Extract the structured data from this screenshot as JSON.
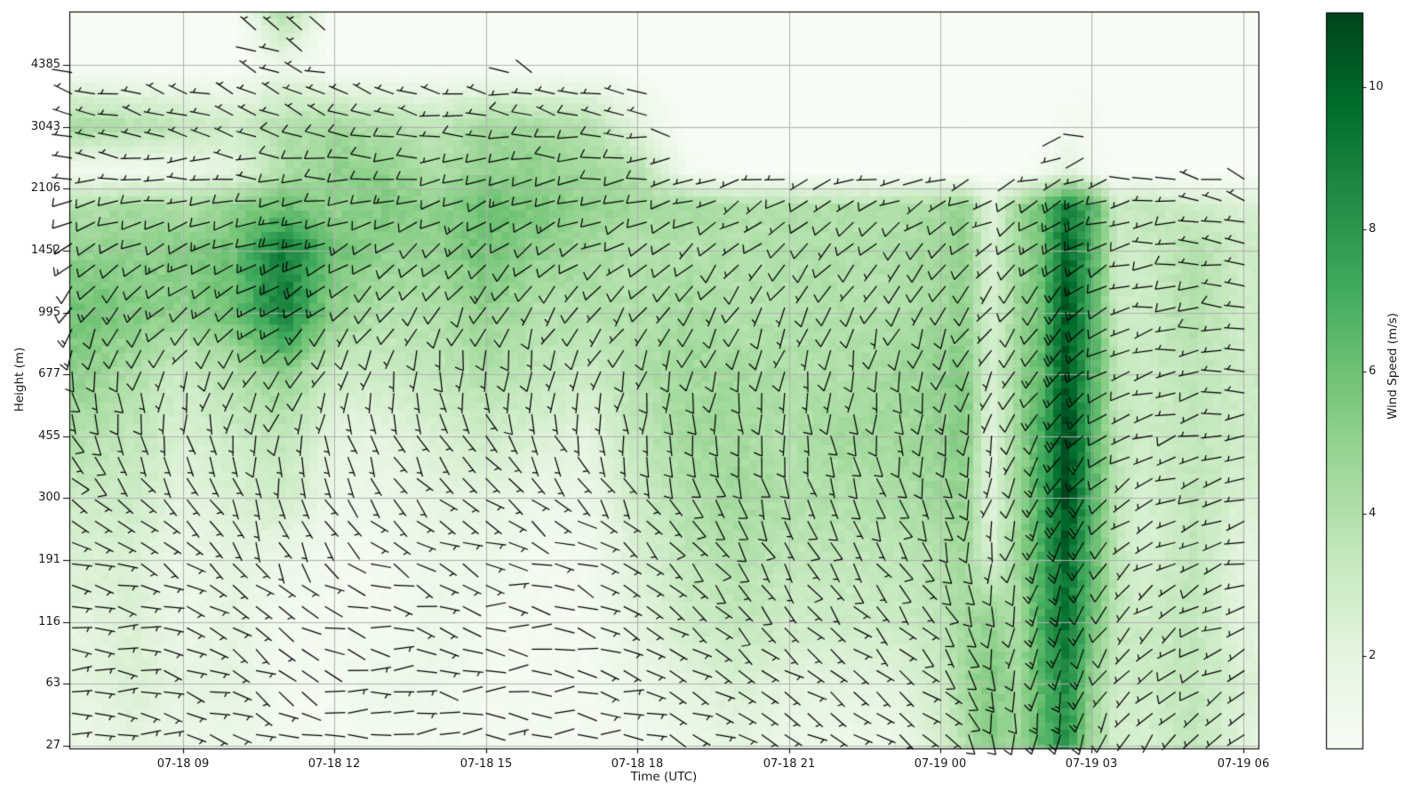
{
  "axes": {
    "xlabel": "Time (UTC)",
    "ylabel": "Height (m)",
    "x_ticks": [
      {
        "hour": 9,
        "label": "07-18 09"
      },
      {
        "hour": 12,
        "label": "07-18 12"
      },
      {
        "hour": 15,
        "label": "07-18 15"
      },
      {
        "hour": 18,
        "label": "07-18 18"
      },
      {
        "hour": 21,
        "label": "07-18 21"
      },
      {
        "hour": 24,
        "label": "07-19 00"
      },
      {
        "hour": 27,
        "label": "07-19 03"
      },
      {
        "hour": 30,
        "label": "07-19 06"
      }
    ],
    "y_ticks": [
      {
        "height_m": 27,
        "label": "27"
      },
      {
        "height_m": 63,
        "label": "63"
      },
      {
        "height_m": 116,
        "label": "116"
      },
      {
        "height_m": 191,
        "label": "191"
      },
      {
        "height_m": 300,
        "label": "300"
      },
      {
        "height_m": 455,
        "label": "455"
      },
      {
        "height_m": 677,
        "label": "677"
      },
      {
        "height_m": 995,
        "label": "995"
      },
      {
        "height_m": 1452,
        "label": "1452"
      },
      {
        "height_m": 2106,
        "label": "2106"
      },
      {
        "height_m": 3043,
        "label": "3043"
      },
      {
        "height_m": 4385,
        "label": "4385"
      }
    ],
    "grid_color": "#b0b0b0",
    "spine_color": "#000000",
    "barb_color": "#000000"
  },
  "colorbar": {
    "label": "Wind Speed (m/s)",
    "ticks": [
      2,
      4,
      6,
      8,
      10
    ],
    "vmin": 0.7,
    "vmax": 11.05,
    "colormap_name": "Greens",
    "colormap_stops": [
      "#f7fcf5",
      "#e5f5e0",
      "#c7e9c0",
      "#a1d99b",
      "#74c476",
      "#41ab5d",
      "#238b45",
      "#006d2c",
      "#00441b"
    ]
  },
  "chart_data": {
    "type": "heatmap",
    "title": "",
    "xlabel": "Time (UTC)",
    "ylabel": "Height (m)",
    "x_note": "hours since 2024-07-18 00:00 UTC; plot spans 6.75 to 30.3",
    "x_start_hour": 6.75,
    "x_end_hour": 30.3,
    "x_hours": [
      7,
      8,
      9,
      10,
      11,
      12,
      13,
      14,
      15,
      16,
      17,
      18,
      19,
      20,
      21,
      22,
      23,
      24,
      24.5,
      25,
      25.5,
      26,
      26.5,
      27,
      27.5,
      28,
      29,
      30
    ],
    "y_level_index": [
      0,
      1,
      2,
      3,
      4,
      5,
      6,
      7,
      8,
      8.7,
      9.3,
      10,
      11,
      11.9
    ],
    "y_level_heights_m": [
      27,
      63,
      116,
      191,
      300,
      455,
      677,
      995,
      1452,
      1800,
      2300,
      3043,
      4385,
      5600
    ],
    "wind_speed_ms": [
      [
        1.5,
        2,
        1.5,
        1.5,
        1,
        1,
        1,
        1,
        1,
        1,
        1,
        1,
        1.5,
        2,
        1.5,
        1.5,
        1.5,
        2.5,
        4,
        5.5,
        4.5,
        6.5,
        8,
        4.5,
        2.5,
        2.5,
        3.5,
        2
      ],
      [
        2,
        2.5,
        2,
        2,
        1,
        1,
        1.5,
        1.5,
        1,
        1,
        1,
        1.5,
        2,
        2.5,
        2,
        2,
        2,
        3,
        4.5,
        5.5,
        4.5,
        6.5,
        8.5,
        5,
        3,
        3,
        3.5,
        2.5
      ],
      [
        2,
        2.5,
        1.5,
        2,
        1,
        1,
        1,
        1.5,
        1,
        1,
        1,
        2,
        3,
        3.5,
        3,
        3,
        3,
        3.5,
        4.5,
        5,
        4,
        7,
        9.5,
        6,
        3.5,
        3,
        3.5,
        2
      ],
      [
        2.5,
        2.5,
        1.5,
        2,
        1.5,
        1,
        1,
        1.5,
        1.5,
        1,
        1,
        2.5,
        3.5,
        4,
        3.5,
        3.5,
        3.5,
        4,
        4.5,
        2.5,
        4.5,
        7,
        10,
        6.5,
        3.5,
        2.5,
        3.5,
        2
      ],
      [
        3,
        3,
        2,
        2.5,
        3,
        1.5,
        1.5,
        2,
        2,
        1.5,
        1.5,
        3,
        4,
        4.5,
        4,
        4,
        4,
        4.5,
        5,
        2,
        4.5,
        7,
        11,
        7,
        3.5,
        2.5,
        3.5,
        2.5
      ],
      [
        4,
        3.5,
        2.5,
        3,
        3.5,
        2,
        2,
        2.5,
        3,
        2.5,
        2,
        3.5,
        4.5,
        4.5,
        4,
        4.5,
        4.5,
        5,
        5.5,
        2,
        4.5,
        7,
        11,
        7,
        3.5,
        3,
        3.5,
        3
      ],
      [
        5,
        4,
        3,
        4,
        5,
        3,
        3,
        3.5,
        4,
        3.5,
        3,
        4,
        4.5,
        4.5,
        4,
        4,
        4.5,
        5,
        5.5,
        2.5,
        4.5,
        6.5,
        10.5,
        7,
        3.5,
        3,
        3.5,
        3
      ],
      [
        6,
        5.5,
        5,
        6,
        9,
        5,
        4,
        4,
        5,
        4,
        4,
        4,
        4.5,
        4,
        4,
        4,
        4,
        4.5,
        5,
        2.5,
        4.5,
        6,
        10.5,
        7,
        3,
        3,
        4,
        3
      ],
      [
        5,
        5,
        5.5,
        6,
        9,
        6,
        5,
        5,
        6,
        5,
        4.5,
        4,
        4,
        4,
        4,
        4,
        4,
        4.5,
        5,
        2.5,
        4.5,
        6,
        10,
        7,
        3,
        3,
        4,
        3
      ],
      [
        4,
        4.5,
        4,
        5,
        6,
        5,
        5.5,
        5,
        6,
        5.5,
        5,
        4.5,
        4.5,
        4,
        4,
        4,
        4,
        4.5,
        5,
        2,
        4.5,
        6,
        9,
        7,
        3,
        3.5,
        3,
        2.5
      ],
      [
        1,
        1,
        1.5,
        2,
        4,
        5,
        5,
        4,
        5,
        5,
        4.5,
        4,
        1,
        0.5,
        0.5,
        0.5,
        0.5,
        0.5,
        0.5,
        0.5,
        0.5,
        1,
        2,
        1,
        0.5,
        0.5,
        0.5,
        0.5
      ],
      [
        4.5,
        4,
        3.5,
        3,
        4,
        4.5,
        4,
        3.5,
        4.5,
        4.5,
        4,
        2,
        0.5,
        0.5,
        0.5,
        0.5,
        0.5,
        0.5,
        0.5,
        0.5,
        0.5,
        0.5,
        1,
        1,
        0.5,
        0.5,
        0.5,
        0.5
      ],
      [
        0.5,
        0.5,
        0.5,
        0.5,
        1.5,
        0.5,
        0.5,
        0.5,
        0.5,
        0.5,
        0.5,
        0.5,
        0.5,
        0.5,
        0.5,
        0.5,
        0.5,
        0.5,
        0.5,
        0.5,
        0.5,
        0.5,
        0.5,
        0.5,
        0.5,
        0.5,
        0.5,
        0.5
      ],
      [
        0.5,
        0.5,
        0.5,
        0.5,
        4.5,
        0.5,
        0.5,
        0.5,
        0.5,
        0.5,
        0.5,
        0.5,
        0.5,
        0.5,
        0.5,
        0.5,
        0.5,
        0.5,
        0.5,
        0.5,
        0.5,
        0.5,
        0.5,
        0.5,
        0.5,
        0.5,
        0.5,
        0.5
      ]
    ],
    "wind_dir_deg_from": [
      [
        80,
        90,
        100,
        110,
        120,
        100,
        90,
        90,
        90,
        90,
        90,
        100,
        110,
        120,
        120,
        120,
        120,
        130,
        150,
        170,
        180,
        185,
        190,
        200,
        210,
        220,
        230,
        240
      ],
      [
        85,
        95,
        105,
        115,
        120,
        100,
        95,
        95,
        90,
        90,
        95,
        105,
        115,
        125,
        125,
        125,
        125,
        135,
        155,
        175,
        185,
        190,
        195,
        205,
        215,
        225,
        235,
        245
      ],
      [
        90,
        100,
        110,
        120,
        130,
        110,
        100,
        100,
        95,
        95,
        100,
        115,
        125,
        135,
        135,
        135,
        135,
        145,
        160,
        180,
        190,
        195,
        200,
        210,
        220,
        230,
        240,
        250
      ],
      [
        110,
        120,
        130,
        140,
        150,
        130,
        120,
        115,
        110,
        110,
        115,
        130,
        140,
        145,
        145,
        145,
        145,
        155,
        170,
        185,
        195,
        200,
        205,
        215,
        225,
        235,
        245,
        255
      ],
      [
        130,
        140,
        150,
        160,
        170,
        150,
        140,
        135,
        130,
        130,
        140,
        150,
        155,
        160,
        160,
        160,
        160,
        165,
        180,
        195,
        200,
        205,
        210,
        220,
        230,
        240,
        250,
        260
      ],
      [
        150,
        160,
        170,
        180,
        190,
        170,
        160,
        155,
        150,
        155,
        165,
        170,
        175,
        175,
        175,
        175,
        175,
        180,
        190,
        200,
        205,
        210,
        215,
        225,
        235,
        245,
        255,
        265
      ],
      [
        180,
        190,
        200,
        210,
        220,
        200,
        190,
        185,
        180,
        185,
        195,
        195,
        195,
        190,
        190,
        190,
        190,
        195,
        200,
        210,
        215,
        215,
        220,
        230,
        240,
        250,
        260,
        270
      ],
      [
        210,
        220,
        230,
        235,
        240,
        225,
        215,
        210,
        205,
        210,
        220,
        215,
        210,
        205,
        205,
        205,
        205,
        210,
        215,
        220,
        220,
        220,
        225,
        235,
        245,
        255,
        265,
        275
      ],
      [
        235,
        240,
        245,
        248,
        250,
        240,
        235,
        230,
        230,
        235,
        240,
        235,
        230,
        225,
        225,
        225,
        225,
        225,
        228,
        230,
        230,
        228,
        230,
        240,
        250,
        260,
        270,
        280
      ],
      [
        250,
        255,
        258,
        260,
        262,
        255,
        250,
        248,
        248,
        252,
        255,
        250,
        245,
        240,
        240,
        240,
        240,
        240,
        242,
        244,
        244,
        240,
        240,
        248,
        255,
        265,
        275,
        285
      ],
      [
        265,
        268,
        270,
        272,
        274,
        270,
        265,
        262,
        262,
        265,
        268,
        265,
        260,
        255,
        255,
        255,
        255,
        255,
        255,
        255,
        255,
        250,
        250,
        255,
        260,
        270,
        280,
        290
      ],
      [
        280,
        282,
        284,
        286,
        288,
        285,
        280,
        278,
        278,
        280,
        282,
        280,
        275,
        270,
        270,
        270,
        270,
        270,
        270,
        270,
        270,
        268,
        268,
        270,
        275,
        280,
        285,
        295
      ],
      [
        290,
        290,
        292,
        294,
        296,
        292,
        290,
        288,
        288,
        290,
        292,
        290,
        285,
        280,
        280,
        280,
        280,
        280,
        280,
        280,
        280,
        278,
        278,
        280,
        282,
        285,
        290,
        300
      ],
      [
        295,
        295,
        296,
        298,
        300,
        296,
        294,
        292,
        292,
        294,
        296,
        294,
        290,
        285,
        285,
        285,
        285,
        285,
        285,
        285,
        285,
        283,
        283,
        285,
        287,
        290,
        295,
        305
      ]
    ]
  }
}
